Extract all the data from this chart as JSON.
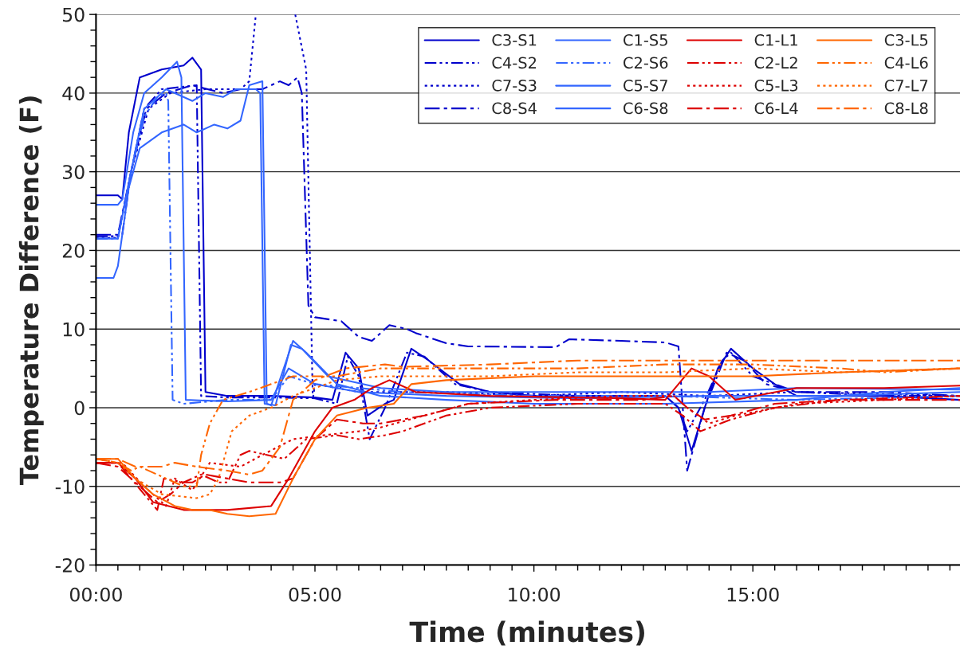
{
  "chart_data": {
    "type": "line",
    "xlabel": "Time (minutes)",
    "ylabel": "Temperature Difference (F)",
    "xlim": [
      0,
      19.73
    ],
    "ylim": [
      -20,
      50
    ],
    "xticks": [
      {
        "value": 0,
        "label": "00:00"
      },
      {
        "value": 0.5,
        "label": null
      },
      {
        "value": 1,
        "label": null
      },
      {
        "value": 1.5,
        "label": null
      },
      {
        "value": 2,
        "label": null
      },
      {
        "value": 2.5,
        "label": null
      },
      {
        "value": 3,
        "label": null
      },
      {
        "value": 3.5,
        "label": null
      },
      {
        "value": 4,
        "label": null
      },
      {
        "value": 4.5,
        "label": null
      },
      {
        "value": 5,
        "label": "05:00"
      },
      {
        "value": 5.5,
        "label": null
      },
      {
        "value": 6,
        "label": null
      },
      {
        "value": 6.5,
        "label": null
      },
      {
        "value": 7,
        "label": null
      },
      {
        "value": 7.5,
        "label": null
      },
      {
        "value": 8,
        "label": null
      },
      {
        "value": 8.5,
        "label": null
      },
      {
        "value": 9,
        "label": null
      },
      {
        "value": 9.5,
        "label": null
      },
      {
        "value": 10,
        "label": "10:00"
      },
      {
        "value": 10.5,
        "label": null
      },
      {
        "value": 11,
        "label": null
      },
      {
        "value": 11.5,
        "label": null
      },
      {
        "value": 12,
        "label": null
      },
      {
        "value": 12.5,
        "label": null
      },
      {
        "value": 13,
        "label": null
      },
      {
        "value": 13.5,
        "label": null
      },
      {
        "value": 14,
        "label": null
      },
      {
        "value": 14.5,
        "label": null
      },
      {
        "value": 15,
        "label": "15:00"
      },
      {
        "value": 15.5,
        "label": null
      },
      {
        "value": 16,
        "label": null
      },
      {
        "value": 16.5,
        "label": null
      },
      {
        "value": 17,
        "label": null
      },
      {
        "value": 17.5,
        "label": null
      },
      {
        "value": 18,
        "label": null
      },
      {
        "value": 18.5,
        "label": null
      },
      {
        "value": 19,
        "label": null
      },
      {
        "value": 19.5,
        "label": null
      }
    ],
    "yticks": [
      -20,
      {
        "value": -18,
        "label": null
      },
      {
        "value": -16,
        "label": null
      },
      {
        "value": -14,
        "label": null
      },
      {
        "value": -12,
        "label": null
      },
      -10,
      {
        "value": -8,
        "label": null
      },
      {
        "value": -6,
        "label": null
      },
      {
        "value": -4,
        "label": null
      },
      {
        "value": -2,
        "label": null
      },
      0,
      {
        "value": 2,
        "label": null
      },
      {
        "value": 4,
        "label": null
      },
      {
        "value": 6,
        "label": null
      },
      {
        "value": 8,
        "label": null
      },
      10,
      {
        "value": 12,
        "label": null
      },
      {
        "value": 14,
        "label": null
      },
      {
        "value": 16,
        "label": null
      },
      {
        "value": 18,
        "label": null
      },
      20,
      {
        "value": 22,
        "label": null
      },
      {
        "value": 24,
        "label": null
      },
      {
        "value": 26,
        "label": null
      },
      {
        "value": 28,
        "label": null
      },
      30,
      {
        "value": 32,
        "label": null
      },
      {
        "value": 34,
        "label": null
      },
      {
        "value": 36,
        "label": null
      },
      {
        "value": 38,
        "label": null
      },
      40,
      {
        "value": 42,
        "label": null
      },
      {
        "value": 44,
        "label": null
      },
      {
        "value": 46,
        "label": null
      },
      {
        "value": 48,
        "label": null
      },
      50
    ],
    "grid": "y",
    "legend": "top right",
    "marker": "none",
    "series": [
      {
        "name": "C3-S1",
        "color": "#0000cc",
        "line_style": "solid",
        "x": [
          0,
          0.5,
          0.6,
          0.75,
          1.0,
          1.5,
          2.0,
          2.2,
          2.4,
          2.5,
          3,
          4,
          5,
          5.4,
          5.7,
          6.0,
          6.2,
          6.6,
          6.8,
          7.2,
          7.6,
          8.3,
          9,
          10,
          12,
          13,
          13.3,
          13.6,
          13.9,
          14.2,
          14.5,
          15.0,
          15.5,
          16,
          18,
          19.73
        ],
        "values": [
          27,
          27,
          26.5,
          35,
          42,
          43,
          43.5,
          44.5,
          43,
          2,
          1.5,
          1.5,
          1.3,
          1,
          7,
          5,
          -1,
          0.5,
          1,
          7.5,
          6,
          3,
          2,
          1.5,
          1.5,
          1.5,
          0,
          -5.5,
          0,
          5,
          7.5,
          5,
          3,
          1.5,
          1.5,
          1
        ]
      },
      {
        "name": "C4-S2",
        "color": "#0000cc",
        "line_style": "dashdotdot",
        "x": [
          0,
          0.5,
          0.6,
          0.8,
          1.1,
          1.5,
          2.3,
          2.4,
          3,
          4,
          5,
          5.5,
          5.75,
          6.0,
          6.25,
          6.6,
          7.1,
          7.5,
          8.2,
          9,
          11,
          13,
          13.3,
          13.5,
          13.9,
          14.3,
          14.5,
          15,
          16,
          18,
          19.73
        ],
        "values": [
          21.8,
          21.8,
          22,
          30,
          38,
          40.5,
          41,
          1.5,
          1.3,
          1.3,
          1.2,
          0.5,
          6.5,
          4,
          -4,
          0,
          7,
          6.5,
          3,
          2,
          1.5,
          1.5,
          0,
          -3,
          1,
          6,
          7,
          4,
          2,
          1.5,
          1.5
        ]
      },
      {
        "name": "C7-S3",
        "color": "#0000cc",
        "line_style": "dotted",
        "x": [
          0,
          0.5,
          0.8,
          1.2,
          1.7,
          2.5,
          3.3,
          3.5,
          3.65,
          4.1,
          4.55,
          4.8,
          4.95,
          5.0,
          6,
          8,
          10,
          12,
          14,
          16,
          19.73
        ],
        "values": [
          21.6,
          21.6,
          30,
          38,
          40,
          40.5,
          40.5,
          41.5,
          50,
          null,
          50,
          43,
          1,
          3,
          2,
          2,
          1.5,
          2,
          1.5,
          2,
          1.5
        ]
      },
      {
        "name": "C8-S4",
        "color": "#0000cc",
        "line_style": "dashdot",
        "x": [
          0,
          0.5,
          0.8,
          1.15,
          1.6,
          2.2,
          2.9,
          3.3,
          3.8,
          4.2,
          4.4,
          4.6,
          4.7,
          4.85,
          5.0,
          5.6,
          6.0,
          6.3,
          6.7,
          7.1,
          7.3,
          8.0,
          8.5,
          10.5,
          10.8,
          12,
          13.0,
          13.3,
          13.5,
          13.9,
          14.4,
          14.8,
          15.3,
          16,
          18,
          19.73
        ],
        "values": [
          22,
          22,
          30,
          38,
          40,
          41,
          40,
          40.5,
          40.5,
          41.5,
          41,
          42,
          40,
          13,
          11.5,
          11,
          9,
          8.5,
          10.5,
          10,
          9.5,
          8.2,
          7.8,
          7.7,
          8.7,
          8.5,
          8.3,
          7.8,
          -8,
          0,
          7,
          6,
          3,
          2,
          2,
          1.5
        ]
      },
      {
        "name": "C1-S5",
        "color": "#3366ff",
        "line_style": "solid",
        "x": [
          0,
          0.5,
          0.6,
          0.85,
          1.1,
          1.5,
          1.85,
          1.95,
          2.05,
          3,
          4,
          4.4,
          5,
          6,
          8,
          11,
          14,
          17,
          19.73
        ],
        "values": [
          25.8,
          25.8,
          26.5,
          35,
          40,
          42,
          44,
          42,
          1,
          0.8,
          1,
          5,
          3,
          2,
          1.5,
          1.2,
          1.5,
          1.5,
          2
        ]
      },
      {
        "name": "C2-S6",
        "color": "#3366ff",
        "line_style": "dashdotdot",
        "x": [
          0,
          0.5,
          0.8,
          1.1,
          1.4,
          1.6,
          1.65,
          1.75,
          2,
          3,
          4,
          4.4,
          5,
          7,
          10,
          13,
          16,
          19.73
        ],
        "values": [
          21.5,
          21.5,
          30,
          37,
          39.5,
          40,
          39,
          1,
          0.5,
          1,
          1,
          4,
          3,
          2,
          1.5,
          1.5,
          1,
          1.5
        ]
      },
      {
        "name": "C5-S7",
        "color": "#3366ff",
        "line_style": "solid",
        "x": [
          0,
          0.4,
          0.5,
          0.75,
          1.0,
          1.5,
          2.0,
          2.3,
          2.7,
          3.0,
          3.3,
          3.5,
          3.8,
          3.9,
          4.0,
          4.5,
          4.8,
          5.5,
          6.5,
          8,
          10,
          13,
          16,
          18,
          19.73
        ],
        "values": [
          16.5,
          16.5,
          18,
          28,
          33,
          35,
          36,
          35,
          36,
          35.5,
          36.5,
          41,
          41.5,
          0.5,
          0.3,
          8.5,
          7,
          3,
          1.5,
          1,
          0.5,
          0.5,
          1,
          2,
          2.5
        ]
      },
      {
        "name": "C6-S8",
        "color": "#3366ff",
        "line_style": "solid",
        "x": [
          0,
          0.5,
          0.8,
          1.1,
          1.6,
          2.2,
          2.5,
          2.9,
          3.2,
          3.65,
          3.75,
          3.85,
          4.1,
          4.45,
          4.7,
          5.3,
          6.5,
          8,
          11,
          14,
          16,
          19.73
        ],
        "values": [
          21.5,
          21.5,
          30,
          38,
          40.5,
          39,
          40,
          39.5,
          40.5,
          40.5,
          40,
          0.5,
          0.3,
          8,
          7.5,
          4,
          2.5,
          2,
          2,
          2,
          2.5,
          2.3
        ]
      },
      {
        "name": "C1-L1",
        "color": "#dd0000",
        "line_style": "solid",
        "x": [
          0,
          0.5,
          0.9,
          1.3,
          2,
          3,
          4.0,
          4.4,
          5.0,
          5.4,
          5.9,
          6.3,
          6.7,
          7.3,
          9,
          12,
          13,
          13.3,
          13.6,
          14.0,
          14.6,
          16,
          18,
          19.73
        ],
        "values": [
          -7,
          -7,
          -9,
          -12,
          -13,
          -13,
          -12.5,
          -9,
          -3,
          0,
          1,
          2.5,
          3.5,
          2,
          1.5,
          1.2,
          1,
          3,
          5,
          4,
          1,
          2.5,
          2.5,
          2.8
        ]
      },
      {
        "name": "C2-L2",
        "color": "#dd0000",
        "line_style": "dashdotdot",
        "x": [
          0,
          0.5,
          0.8,
          1.1,
          1.4,
          1.55,
          2.0,
          2.4,
          2.8,
          3.0,
          3.3,
          3.5,
          4.3,
          4.8,
          5.5,
          6.0,
          6.6,
          7.0,
          8.0,
          9,
          11,
          13,
          13.4,
          13.8,
          14.5,
          15.5,
          17,
          19.73
        ],
        "values": [
          -7,
          -7,
          -9,
          -11,
          -13,
          -9,
          -9.5,
          -8.5,
          -9.5,
          -9.5,
          -6,
          -5.5,
          -6.5,
          -4,
          -3.5,
          -4,
          -3.5,
          -3,
          -1,
          0,
          0.5,
          0.5,
          -1,
          -3,
          -1.5,
          0,
          1,
          1.5
        ]
      },
      {
        "name": "C5-L3",
        "color": "#dd0000",
        "line_style": "dotted",
        "x": [
          0,
          0.6,
          1.1,
          1.6,
          1.8,
          2.2,
          2.6,
          3.3,
          3.8,
          4.5,
          5.2,
          6,
          6.5,
          7.5,
          8.5,
          10,
          12,
          13.2,
          13.5,
          14,
          14.6,
          16,
          18,
          19.73
        ],
        "values": [
          -7,
          -7,
          -10,
          -12.5,
          -9,
          -10.5,
          -7,
          -7.5,
          -6,
          -4,
          -3.5,
          -3,
          -2.5,
          -1,
          0.5,
          1,
          1.5,
          1.5,
          0,
          -2,
          -1,
          0.5,
          1,
          1.5
        ]
      },
      {
        "name": "C6-L4",
        "color": "#dd0000",
        "line_style": "dashdot",
        "x": [
          0,
          0.5,
          1.0,
          1.4,
          1.7,
          2.0,
          2.2,
          2.5,
          3.0,
          3.5,
          4.2,
          4.5,
          5.0,
          5.5,
          6.1,
          6.5,
          7.5,
          8.5,
          10.5,
          12.5,
          13.2,
          13.5,
          13.9,
          14.5,
          15.5,
          17,
          19.73
        ],
        "values": [
          -7,
          -7.5,
          -10,
          -12,
          -11,
          -9.5,
          -9.5,
          -8.5,
          -9,
          -9.5,
          -9.5,
          -9,
          -4,
          -1.5,
          -2,
          -2,
          -1,
          0.5,
          1,
          1,
          1.5,
          0,
          -1.5,
          -1,
          0.5,
          1,
          1
        ]
      },
      {
        "name": "C3-L5",
        "color": "#ff6600",
        "line_style": "solid",
        "x": [
          0,
          0.5,
          0.9,
          1.3,
          1.8,
          2.2,
          2.6,
          3.0,
          3.5,
          4.1,
          4.5,
          5.0,
          5.5,
          6.2,
          6.8,
          7.2,
          8,
          10,
          13,
          15,
          17,
          19.73
        ],
        "values": [
          -6.5,
          -6.5,
          -9,
          -11,
          -12.5,
          -13,
          -13,
          -13.5,
          -13.8,
          -13.5,
          -9,
          -4,
          -1,
          0,
          0.5,
          3,
          3.5,
          4,
          4,
          4,
          4.5,
          5
        ]
      },
      {
        "name": "C4-L6",
        "color": "#ff6600",
        "line_style": "dashdotdot",
        "x": [
          0,
          0.5,
          0.8,
          1.0,
          1.6,
          2.0,
          2.3,
          2.4,
          2.6,
          2.9,
          3.5,
          4.0,
          4.5,
          5.5,
          6.5,
          9,
          11,
          13,
          15,
          17,
          18,
          19.73
        ],
        "values": [
          -6.5,
          -7,
          -8,
          -7.5,
          -9,
          -10,
          -10,
          -6,
          -2,
          1,
          2,
          3,
          4,
          4,
          5,
          5,
          5,
          5.5,
          5.5,
          5,
          4.5,
          5
        ]
      },
      {
        "name": "C7-L7",
        "color": "#ff6600",
        "line_style": "dotted",
        "x": [
          0,
          0.5,
          0.9,
          1.5,
          2.3,
          2.6,
          2.8,
          3.1,
          3.5,
          4.0,
          4.5,
          5.0,
          5.5,
          6.5,
          9,
          11,
          13,
          15,
          17,
          19.73
        ],
        "values": [
          -6.5,
          -7,
          -9,
          -11,
          -11.5,
          -11,
          -9,
          -3,
          -1,
          0,
          1.5,
          2.5,
          3.5,
          4,
          4,
          4.5,
          4.5,
          5,
          4.5,
          5
        ]
      },
      {
        "name": "C8-L8",
        "color": "#ff6600",
        "line_style": "dashdot",
        "x": [
          0,
          0.5,
          0.9,
          1.5,
          1.8,
          2.3,
          3.0,
          3.5,
          3.8,
          4.2,
          4.5,
          5.0,
          5.7,
          6.6,
          7,
          9,
          11,
          13,
          15,
          17,
          19.73
        ],
        "values": [
          -6.5,
          -6.5,
          -7.5,
          -7.5,
          -7,
          -7.5,
          -8,
          -8.5,
          -8,
          -5,
          1,
          3.5,
          5,
          5.5,
          5.2,
          5.5,
          6,
          6,
          6,
          6,
          6
        ]
      }
    ]
  }
}
